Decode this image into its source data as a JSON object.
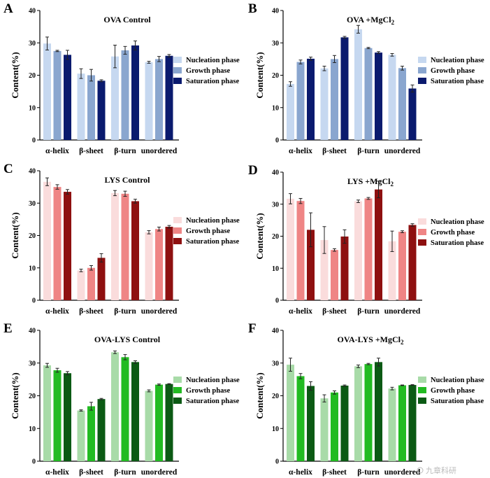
{
  "figure": {
    "watermark": "九章科研"
  },
  "chart_data": [
    {
      "panel": "A",
      "type": "bar",
      "title": "OVA Control",
      "ylabel": "Content(%)",
      "xlabel": "",
      "ylim": [
        0,
        40
      ],
      "yticks": [
        0,
        10,
        20,
        30,
        40
      ],
      "legend_position": "right",
      "categories": [
        "α-helix",
        "β-sheet",
        "β-turn",
        "unordered"
      ],
      "series": [
        {
          "name": "Nucleation phase",
          "color": "#c6d8f0",
          "values": [
            29.8,
            20.5,
            25.8,
            24.0
          ],
          "errors": [
            2.0,
            1.5,
            3.5,
            0.3
          ]
        },
        {
          "name": "Growth phase",
          "color": "#8aa6cf",
          "values": [
            27.5,
            20.0,
            27.7,
            25.0
          ],
          "errors": [
            0.2,
            1.8,
            1.2,
            0.8
          ]
        },
        {
          "name": "Saturation phase",
          "color": "#0a1a6e",
          "values": [
            26.3,
            18.3,
            29.2,
            26.0
          ],
          "errors": [
            1.4,
            0.3,
            1.4,
            0.4
          ]
        }
      ]
    },
    {
      "panel": "B",
      "type": "bar",
      "title": "OVA +MgCl",
      "title_sub": "2",
      "ylabel": "Content(%)",
      "xlabel": "",
      "ylim": [
        0,
        40
      ],
      "yticks": [
        0,
        10,
        20,
        30,
        40
      ],
      "legend_position": "right",
      "categories": [
        "α-helix",
        "β-sheet",
        "β-turn",
        "unordered"
      ],
      "series": [
        {
          "name": "Nucleation phase",
          "color": "#c6d8f0",
          "values": [
            17.3,
            22.1,
            34.2,
            26.3
          ],
          "errors": [
            0.7,
            0.7,
            1.2,
            0.4
          ]
        },
        {
          "name": "Growth phase",
          "color": "#8aa6cf",
          "values": [
            24.1,
            25.0,
            28.4,
            22.2
          ],
          "errors": [
            0.6,
            1.1,
            0.2,
            0.6
          ]
        },
        {
          "name": "Saturation phase",
          "color": "#0a1a6e",
          "values": [
            25.1,
            31.7,
            27.0,
            15.9
          ],
          "errors": [
            0.5,
            0.3,
            0.3,
            1.1
          ]
        }
      ]
    },
    {
      "panel": "C",
      "type": "bar",
      "title": "LYS Control",
      "ylabel": "Content(%)",
      "xlabel": "",
      "ylim": [
        0,
        40
      ],
      "yticks": [
        0,
        10,
        20,
        30,
        40
      ],
      "legend_position": "right",
      "categories": [
        "α-helix",
        "β-sheet",
        "β-turn",
        "unordered"
      ],
      "series": [
        {
          "name": "Nucleation phase",
          "color": "#fadcdc",
          "values": [
            36.6,
            9.2,
            33.1,
            21.0
          ],
          "errors": [
            1.2,
            0.4,
            0.8,
            0.5
          ]
        },
        {
          "name": "Growth phase",
          "color": "#ef8585",
          "values": [
            35.0,
            10.0,
            32.9,
            22.0
          ],
          "errors": [
            0.7,
            0.7,
            0.8,
            0.6
          ]
        },
        {
          "name": "Saturation phase",
          "color": "#8e1010",
          "values": [
            33.5,
            13.1,
            30.6,
            22.7
          ],
          "errors": [
            0.7,
            1.3,
            0.6,
            0.4
          ]
        }
      ]
    },
    {
      "panel": "D",
      "type": "bar",
      "title": "LYS +MgCl",
      "title_sub": "2",
      "ylabel": "Content(%)",
      "xlabel": "",
      "ylim": [
        0,
        40
      ],
      "yticks": [
        0,
        10,
        20,
        30,
        40
      ],
      "legend_position": "right",
      "categories": [
        "α-helix",
        "β-sheet",
        "β-turn",
        "unordered"
      ],
      "series": [
        {
          "name": "Nucleation phase",
          "color": "#fadcdc",
          "values": [
            31.7,
            18.8,
            30.9,
            18.4
          ],
          "errors": [
            1.6,
            4.2,
            0.4,
            3.2
          ]
        },
        {
          "name": "Growth phase",
          "color": "#ef8585",
          "values": [
            31.0,
            15.7,
            31.8,
            21.4
          ],
          "errors": [
            0.8,
            0.4,
            0.3,
            0.3
          ]
        },
        {
          "name": "Saturation phase",
          "color": "#8e1010",
          "values": [
            22.0,
            19.9,
            34.6,
            23.5
          ],
          "errors": [
            5.3,
            2.1,
            2.6,
            0.4
          ]
        }
      ]
    },
    {
      "panel": "E",
      "type": "bar",
      "title": "OVA-LYS Control",
      "ylabel": "Content(%)",
      "xlabel": "",
      "ylim": [
        0,
        40
      ],
      "yticks": [
        0,
        10,
        20,
        30,
        40
      ],
      "legend_position": "right",
      "categories": [
        "α-helix",
        "β-sheet",
        "β-turn",
        "unordered"
      ],
      "series": [
        {
          "name": "Nucleation phase",
          "color": "#a8dba8",
          "values": [
            29.3,
            15.5,
            33.3,
            21.5
          ],
          "errors": [
            0.6,
            0.2,
            0.4,
            0.3
          ]
        },
        {
          "name": "Growth phase",
          "color": "#22bb22",
          "values": [
            27.8,
            16.8,
            31.8,
            23.4
          ],
          "errors": [
            0.6,
            1.2,
            0.8,
            0.2
          ]
        },
        {
          "name": "Saturation phase",
          "color": "#0b5a14",
          "values": [
            26.9,
            19.0,
            30.3,
            23.6
          ],
          "errors": [
            0.5,
            0.2,
            0.4,
            0.1
          ]
        }
      ]
    },
    {
      "panel": "F",
      "type": "bar",
      "title": "OVA-LYS +MgCl",
      "title_sub": "2",
      "ylabel": "Content(%)",
      "xlabel": "",
      "ylim": [
        0,
        40
      ],
      "yticks": [
        0,
        10,
        20,
        30,
        40
      ],
      "legend_position": "right",
      "categories": [
        "α-helix",
        "β-sheet",
        "β-turn",
        "unordered"
      ],
      "series": [
        {
          "name": "Nucleation phase",
          "color": "#a8dba8",
          "values": [
            29.5,
            19.2,
            29.0,
            22.2
          ],
          "errors": [
            2.0,
            1.1,
            0.4,
            0.4
          ]
        },
        {
          "name": "Growth phase",
          "color": "#22bb22",
          "values": [
            26.0,
            21.0,
            29.7,
            23.2
          ],
          "errors": [
            0.8,
            0.5,
            0.2,
            0.1
          ]
        },
        {
          "name": "Saturation phase",
          "color": "#0b5a14",
          "values": [
            23.0,
            23.1,
            30.3,
            23.3
          ],
          "errors": [
            1.3,
            0.2,
            1.2,
            0.1
          ]
        }
      ]
    }
  ]
}
